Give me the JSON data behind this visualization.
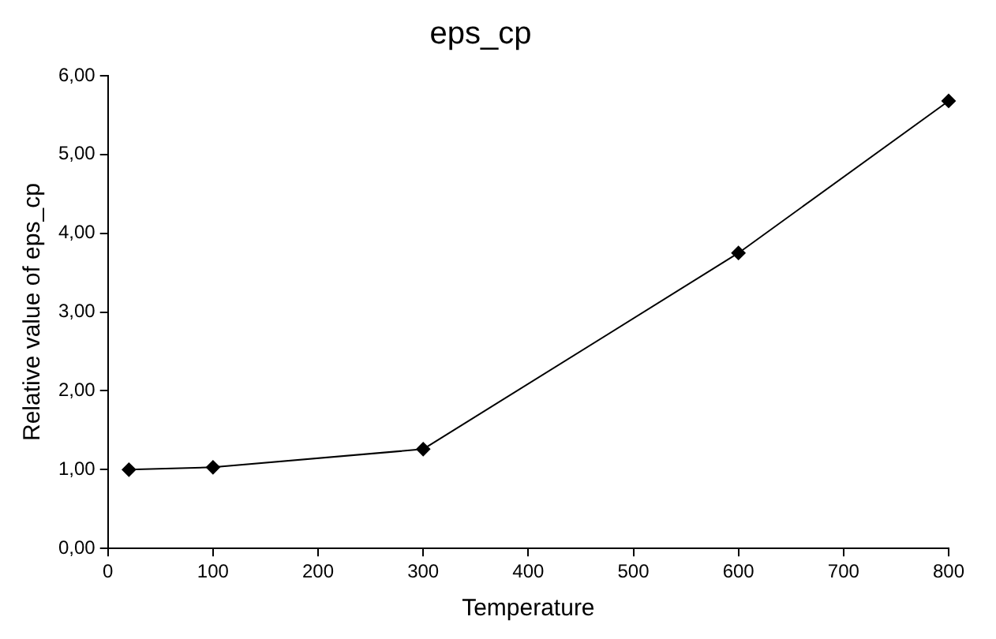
{
  "chart_data": {
    "type": "line",
    "title": "eps_cp",
    "xlabel": "Temperature",
    "ylabel": "Relative value of eps_cp",
    "x": [
      20,
      100,
      300,
      600,
      800
    ],
    "series": [
      {
        "color": "#000000",
        "values": [
          1.0,
          1.03,
          1.26,
          3.75,
          5.68
        ]
      }
    ],
    "xlim": [
      0,
      800
    ],
    "xticks": [
      0,
      100,
      200,
      300,
      400,
      500,
      600,
      700,
      800
    ],
    "ylim": [
      0,
      6
    ],
    "yticks": [
      {
        "value": 0,
        "label": "0,00"
      },
      {
        "value": 1,
        "label": "1,00"
      },
      {
        "value": 2,
        "label": "2,00"
      },
      {
        "value": 3,
        "label": "3,00"
      },
      {
        "value": 4,
        "label": "4,00"
      },
      {
        "value": 5,
        "label": "5,00"
      },
      {
        "value": 6,
        "label": "6,00"
      }
    ],
    "grid": false,
    "legend": false,
    "marker": "diamond",
    "line_style": "solid"
  }
}
